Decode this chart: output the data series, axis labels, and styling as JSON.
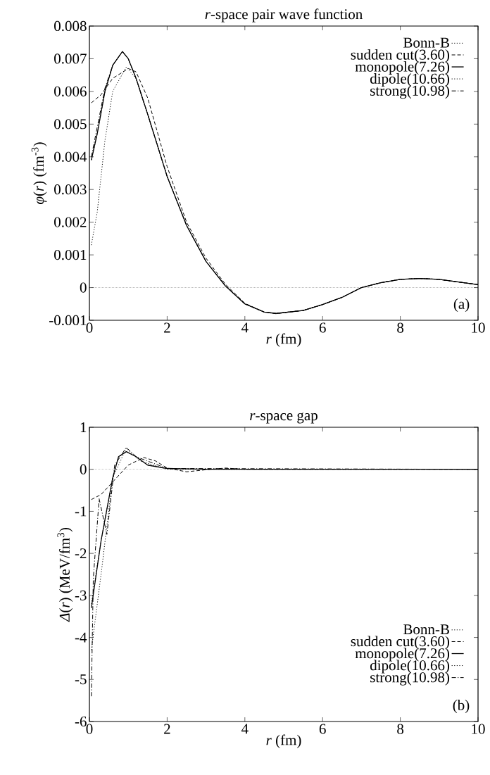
{
  "chart_data": [
    {
      "type": "line",
      "title": "*r*-space pair wave function",
      "xlabel": "*r* (fm)",
      "ylabel": "*φ*(*r*) (fm$^{-3}$)",
      "xlim": [
        0,
        10
      ],
      "ylim": [
        -0.001,
        0.008
      ],
      "xticks": [
        0,
        2,
        4,
        6,
        8,
        10
      ],
      "yticks": [
        -0.001,
        0,
        0.001,
        0.002,
        0.003,
        0.004,
        0.005,
        0.006,
        0.007,
        0.008
      ],
      "legend": "top right",
      "grid": false,
      "annotations": [
        "(a)"
      ],
      "ref_lines": [
        {
          "axis": "y",
          "value": 0,
          "label": null,
          "color": "#000000",
          "line_style": "dotted"
        }
      ],
      "series": [
        {
          "name": "Bonn-B",
          "color": "#000000",
          "line_style": "dotted",
          "x": [
            0.05,
            0.2,
            0.4,
            0.6,
            0.85,
            1.0,
            1.2,
            1.5,
            2.0,
            2.5,
            3.0,
            3.5,
            4.0,
            4.5,
            4.8,
            5.5,
            6.0,
            6.5,
            7.0,
            7.5,
            8.0,
            8.5,
            9.0,
            9.5,
            10
          ],
          "values": [
            0.0039,
            0.0047,
            0.006,
            0.0068,
            0.00722,
            0.007,
            0.0064,
            0.0053,
            0.0034,
            0.0019,
            0.0008,
            5e-05,
            -0.0005,
            -0.00075,
            -0.00079,
            -0.0007,
            -0.00052,
            -0.0003,
            0.0,
            0.00015,
            0.00025,
            0.00028,
            0.00025,
            0.00017,
            9e-05
          ]
        },
        {
          "name": "sudden cut(3.60)",
          "color": "#000000",
          "line_style": "dashed",
          "x": [
            0.05,
            0.3,
            0.6,
            1.0,
            1.2,
            1.5,
            2.0,
            2.5,
            3.0,
            3.5,
            4.0,
            4.5,
            4.8,
            5.5,
            6.0,
            6.5,
            7.0,
            7.5,
            8.0,
            8.5,
            9.0,
            9.5,
            10
          ],
          "values": [
            0.00565,
            0.0059,
            0.0064,
            0.0067,
            0.0066,
            0.0058,
            0.0037,
            0.002,
            0.0009,
            0.0001,
            -0.00048,
            -0.00075,
            -0.0008,
            -0.0007,
            -0.00052,
            -0.0003,
            0.0,
            0.00015,
            0.00025,
            0.00028,
            0.00025,
            0.00017,
            9e-05
          ]
        },
        {
          "name": "monopole(7.26)",
          "color": "#000000",
          "line_style": "solid",
          "x": [
            0.05,
            0.2,
            0.4,
            0.6,
            0.85,
            1.0,
            1.2,
            1.5,
            2.0,
            2.5,
            3.0,
            3.5,
            4.0,
            4.5,
            4.8,
            5.5,
            6.0,
            6.5,
            7.0,
            7.5,
            8.0,
            8.5,
            9.0,
            9.5,
            10
          ],
          "values": [
            0.0039,
            0.0047,
            0.006,
            0.0068,
            0.00722,
            0.007,
            0.0064,
            0.0053,
            0.0034,
            0.0019,
            0.0008,
            5e-05,
            -0.0005,
            -0.00075,
            -0.00079,
            -0.0007,
            -0.00052,
            -0.0003,
            0.0,
            0.00015,
            0.00025,
            0.00028,
            0.00025,
            0.00017,
            9e-05
          ]
        },
        {
          "name": "dipole(10.66)",
          "color": "#000000",
          "line_style": "dotted",
          "x": [
            0.05,
            0.2,
            0.4,
            0.6,
            0.95,
            1.2,
            1.5,
            2.0,
            2.5,
            3.0,
            3.5,
            4.0,
            4.5,
            4.8,
            5.5,
            6.0,
            6.5,
            7.0,
            7.5,
            8.0,
            8.5,
            9.0,
            9.5,
            10
          ],
          "values": [
            0.0013,
            0.0023,
            0.0045,
            0.006,
            0.00675,
            0.0064,
            0.0053,
            0.0034,
            0.0019,
            0.0008,
            5e-05,
            -0.0005,
            -0.00075,
            -0.00079,
            -0.0007,
            -0.00052,
            -0.0003,
            0.0,
            0.00015,
            0.00025,
            0.00028,
            0.00025,
            0.00017,
            9e-05
          ]
        },
        {
          "name": "strong(10.98)",
          "color": "#000000",
          "line_style": "dashdotted",
          "x": [
            0.05,
            0.2,
            0.4,
            0.6,
            0.85,
            1.0,
            1.2,
            1.5,
            2.0,
            2.5,
            3.0,
            3.5,
            4.0,
            4.5,
            4.8,
            5.5,
            6.0,
            6.5,
            7.0,
            7.5,
            8.0,
            8.5,
            9.0,
            9.5,
            10
          ],
          "values": [
            0.004,
            0.0049,
            0.0061,
            0.0068,
            0.00722,
            0.007,
            0.0064,
            0.0053,
            0.0034,
            0.0019,
            0.0008,
            5e-05,
            -0.0005,
            -0.00075,
            -0.00079,
            -0.0007,
            -0.00052,
            -0.0003,
            0.0,
            0.00015,
            0.00025,
            0.00028,
            0.00025,
            0.00017,
            9e-05
          ]
        }
      ]
    },
    {
      "type": "line",
      "title": "*r*-space gap",
      "xlabel": "*r* (fm)",
      "ylabel": "*Δ*(*r*) (MeV/fm$^{3}$)",
      "xlim": [
        0,
        10
      ],
      "ylim": [
        -6,
        1
      ],
      "xticks": [
        0,
        2,
        4,
        6,
        8,
        10
      ],
      "yticks": [
        -6,
        -5,
        -4,
        -3,
        -2,
        -1,
        0,
        1
      ],
      "legend": "bottom right",
      "grid": false,
      "annotations": [
        "(b)"
      ],
      "ref_lines": [
        {
          "axis": "y",
          "value": 0,
          "label": null,
          "color": "#000000",
          "line_style": "dotted"
        }
      ],
      "series": [
        {
          "name": "Bonn-B",
          "color": "#000000",
          "line_style": "dotted",
          "x": [
            0.05,
            0.3,
            0.6,
            0.75,
            0.95,
            1.2,
            1.5,
            2.0,
            3.0,
            10
          ],
          "values": [
            -3.2,
            -1.7,
            -0.2,
            0.3,
            0.42,
            0.3,
            0.1,
            0.02,
            0,
            0
          ]
        },
        {
          "name": "sudden cut(3.60)",
          "color": "#000000",
          "line_style": "dashed",
          "x": [
            0.05,
            0.3,
            0.6,
            1.0,
            1.4,
            1.7,
            2.0,
            2.5,
            3.0,
            3.5,
            4.0,
            10
          ],
          "values": [
            -0.72,
            -0.6,
            -0.3,
            0.1,
            0.28,
            0.2,
            0.03,
            -0.06,
            -0.01,
            0.03,
            0,
            0
          ]
        },
        {
          "name": "monopole(7.26)",
          "color": "#000000",
          "line_style": "solid",
          "x": [
            0.05,
            0.3,
            0.6,
            0.75,
            0.95,
            1.2,
            1.5,
            2.0,
            3.0,
            10
          ],
          "values": [
            -3.3,
            -1.7,
            -0.2,
            0.3,
            0.42,
            0.3,
            0.1,
            0.02,
            0,
            0
          ]
        },
        {
          "name": "dipole(10.66)",
          "color": "#000000",
          "line_style": "dotted",
          "x": [
            0.05,
            0.3,
            0.6,
            0.95,
            1.3,
            2.0,
            10
          ],
          "values": [
            -4.3,
            -2.5,
            -0.2,
            0.5,
            0.2,
            0,
            0
          ]
        },
        {
          "name": "strong(10.98)",
          "color": "#000000",
          "line_style": "dashdotted",
          "x": [
            0.05,
            0.1,
            0.25,
            0.45,
            0.65,
            0.95,
            1.2,
            2.0,
            10
          ],
          "values": [
            -5.4,
            -2.6,
            -0.7,
            -1.55,
            0.1,
            0.52,
            0.3,
            0.02,
            0
          ]
        }
      ]
    }
  ]
}
